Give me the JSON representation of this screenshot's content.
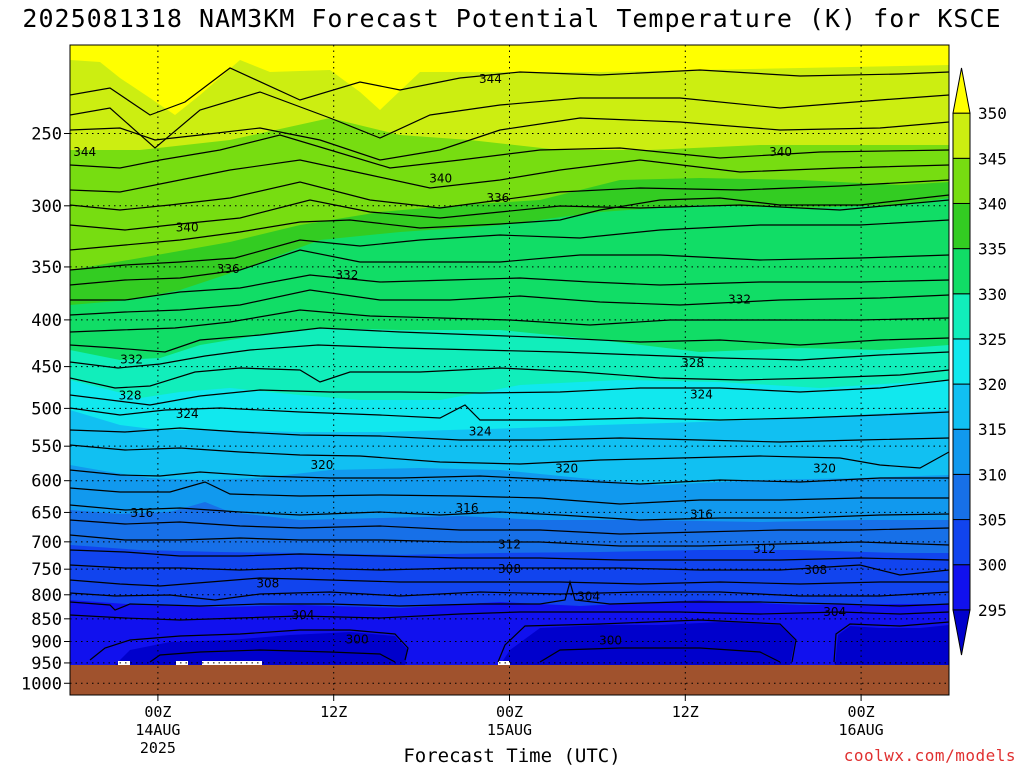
{
  "title": "2025081318 NAM3KM Forecast Potential Temperature (K) for KSCE",
  "watermark": "coolwx.com/models",
  "chart_data": {
    "type": "heatmap",
    "title": "2025081318 NAM3KM Forecast Potential Temperature (K) for KSCE",
    "xlabel": "Forecast Time (UTC)",
    "ylabel": "",
    "x_ticks": [
      {
        "hours": 6,
        "lines": [
          "00Z",
          "14AUG",
          "2025"
        ]
      },
      {
        "hours": 18,
        "lines": [
          "12Z",
          "",
          ""
        ]
      },
      {
        "hours": 30,
        "lines": [
          "00Z",
          "15AUG",
          ""
        ]
      },
      {
        "hours": 42,
        "lines": [
          "12Z",
          "",
          ""
        ]
      },
      {
        "hours": 54,
        "lines": [
          "00Z",
          "16AUG",
          ""
        ]
      }
    ],
    "x_range_hours": [
      0,
      60
    ],
    "y_ticks": [
      "250",
      "300",
      "350",
      "400",
      "450",
      "500",
      "550",
      "600",
      "650",
      "700",
      "750",
      "800",
      "850",
      "900",
      "950",
      "1000"
    ],
    "y_range": [
      200,
      1030
    ],
    "grid": true,
    "colorbar": {
      "levels": [
        295,
        300,
        305,
        310,
        315,
        320,
        325,
        330,
        335,
        340,
        345,
        350
      ],
      "colors": [
        "#0000cc",
        "#1111ee",
        "#1144ee",
        "#1770e8",
        "#1199ee",
        "#11c0f2",
        "#11e8ee",
        "#11eebb",
        "#11dd66",
        "#33cc22",
        "#77dd11",
        "#ccee11",
        "#ffff00",
        "#ffdd11"
      ]
    },
    "contour_labels": [
      {
        "value": "344",
        "h": 1.0,
        "p": 262
      },
      {
        "value": "344",
        "h": 28.7,
        "p": 218
      },
      {
        "value": "340",
        "h": 48.5,
        "p": 262
      },
      {
        "value": "340",
        "h": 25.3,
        "p": 280
      },
      {
        "value": "340",
        "h": 8.0,
        "p": 317
      },
      {
        "value": "336",
        "h": 29.2,
        "p": 294
      },
      {
        "value": "336",
        "h": 10.8,
        "p": 352
      },
      {
        "value": "332",
        "h": 18.9,
        "p": 357
      },
      {
        "value": "332",
        "h": 45.7,
        "p": 380
      },
      {
        "value": "332",
        "h": 4.2,
        "p": 442
      },
      {
        "value": "328",
        "h": 4.1,
        "p": 484
      },
      {
        "value": "328",
        "h": 42.5,
        "p": 446
      },
      {
        "value": "324",
        "h": 8.0,
        "p": 507
      },
      {
        "value": "324",
        "h": 28.0,
        "p": 530
      },
      {
        "value": "324",
        "h": 43.1,
        "p": 483
      },
      {
        "value": "320",
        "h": 17.2,
        "p": 577
      },
      {
        "value": "320",
        "h": 33.9,
        "p": 582
      },
      {
        "value": "320",
        "h": 51.5,
        "p": 582
      },
      {
        "value": "316",
        "h": 4.9,
        "p": 651
      },
      {
        "value": "316",
        "h": 27.1,
        "p": 643
      },
      {
        "value": "316",
        "h": 43.1,
        "p": 653
      },
      {
        "value": "312",
        "h": 30.0,
        "p": 705
      },
      {
        "value": "312",
        "h": 47.4,
        "p": 713
      },
      {
        "value": "308",
        "h": 13.5,
        "p": 778
      },
      {
        "value": "308",
        "h": 30.0,
        "p": 750
      },
      {
        "value": "308",
        "h": 50.9,
        "p": 752
      },
      {
        "value": "304",
        "h": 15.9,
        "p": 842
      },
      {
        "value": "304",
        "h": 35.4,
        "p": 803
      },
      {
        "value": "304",
        "h": 52.2,
        "p": 835
      },
      {
        "value": "300",
        "h": 19.6,
        "p": 896
      },
      {
        "value": "300",
        "h": 36.9,
        "p": 898
      }
    ]
  }
}
